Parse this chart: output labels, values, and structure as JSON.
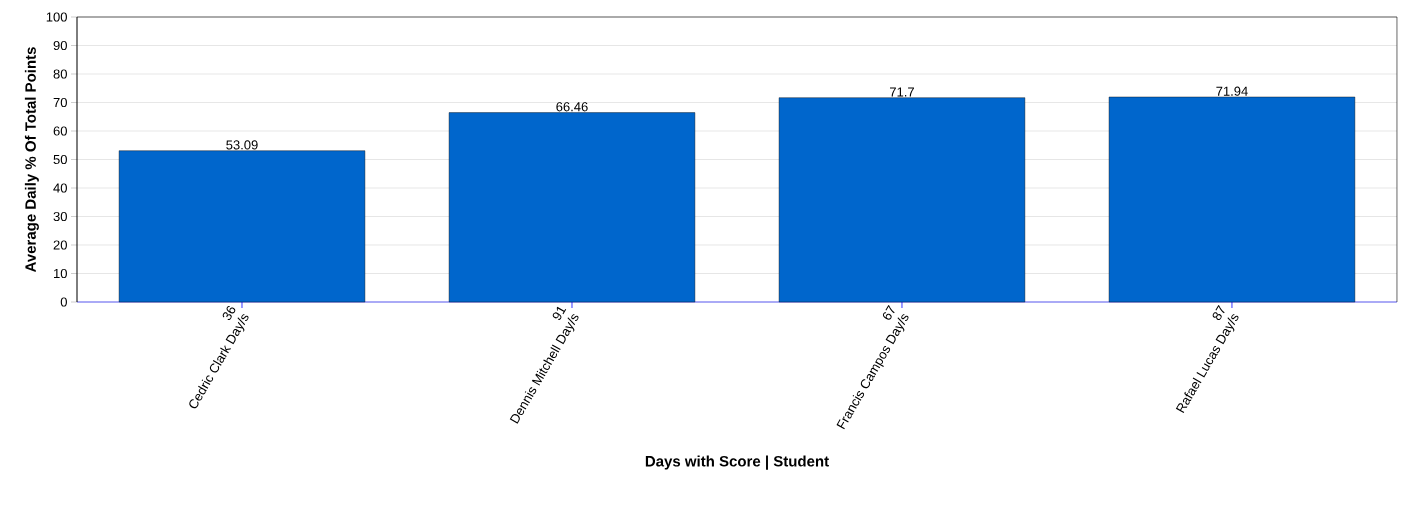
{
  "chart_data": {
    "type": "bar",
    "xlabel": "Days with Score | Student",
    "ylabel": "Average Daily % Of Total Points",
    "categories": [
      "36\nCedric Clark Day/s",
      "91\nDennis Mitchell Day/s",
      "67\nFrancis Campos Day/s",
      "87\nRafael Lucas Day/s"
    ],
    "values": [
      53.09,
      66.46,
      71.7,
      71.94
    ],
    "color": "#0066cc",
    "ylim": [
      0,
      100
    ],
    "yticks": [
      0,
      10,
      20,
      30,
      40,
      50,
      60,
      70,
      80,
      90,
      100
    ],
    "grid": "y",
    "data_labels": true
  }
}
